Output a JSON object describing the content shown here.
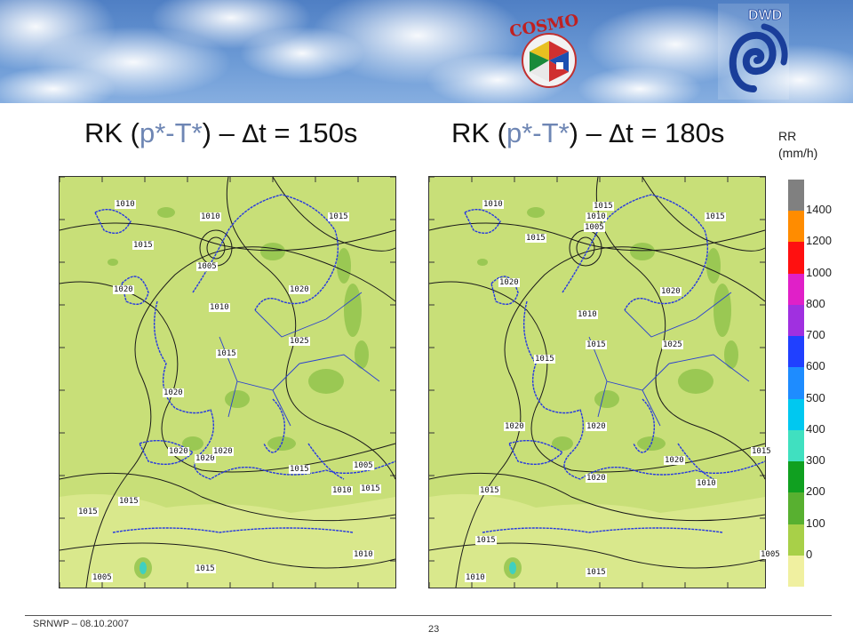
{
  "banner": {
    "logo_cosmo": "COSMO",
    "logo_dwd": "DWD"
  },
  "titles": {
    "left": {
      "prefix": "RK (",
      "p": "p*-T*",
      "suffix": ") – ",
      "delta": "∆",
      "rest": "t = 150s"
    },
    "right": {
      "prefix": "RK (",
      "p": "p*-T*",
      "suffix": ") – ",
      "delta": "∆",
      "rest": "t = 180s"
    }
  },
  "legend": {
    "title_line1": "RR",
    "title_line2": "(mm/h)",
    "levels": [
      {
        "label": "1400",
        "color": "#808080"
      },
      {
        "label": "1200",
        "color": "#ff8c00"
      },
      {
        "label": "1000",
        "color": "#ff1010"
      },
      {
        "label": "800",
        "color": "#e020c8"
      },
      {
        "label": "700",
        "color": "#a030e0"
      },
      {
        "label": "600",
        "color": "#2040ff"
      },
      {
        "label": "500",
        "color": "#1e8cff"
      },
      {
        "label": "400",
        "color": "#00c8f0"
      },
      {
        "label": "300",
        "color": "#40e0c0"
      },
      {
        "label": "200",
        "color": "#10a020"
      },
      {
        "label": "100",
        "color": "#58b030"
      },
      {
        "label": "0",
        "color": "#a8d048"
      },
      {
        "label": "",
        "color": "#f0f0a0"
      }
    ]
  },
  "maps": {
    "left": {
      "isobar_labels": [
        "1010",
        "1010",
        "1015",
        "1015",
        "1005",
        "1020",
        "1020",
        "1010",
        "1025",
        "1015",
        "1020",
        "1020",
        "1020",
        "1020",
        "1015",
        "1010",
        "1005",
        "1015",
        "1015",
        "1015",
        "1010",
        "1015",
        "1005"
      ]
    },
    "right": {
      "isobar_labels": [
        "1010",
        "1015",
        "1010",
        "1005",
        "1015",
        "1015",
        "1020",
        "1020",
        "1010",
        "1015",
        "1025",
        "1015",
        "1020",
        "1020",
        "1020",
        "1015",
        "1020",
        "1010",
        "1015",
        "1015",
        "1010",
        "1015",
        "1005"
      ]
    }
  },
  "footer": {
    "left": "SRNWP   – 08.10.2007",
    "page": "23"
  }
}
